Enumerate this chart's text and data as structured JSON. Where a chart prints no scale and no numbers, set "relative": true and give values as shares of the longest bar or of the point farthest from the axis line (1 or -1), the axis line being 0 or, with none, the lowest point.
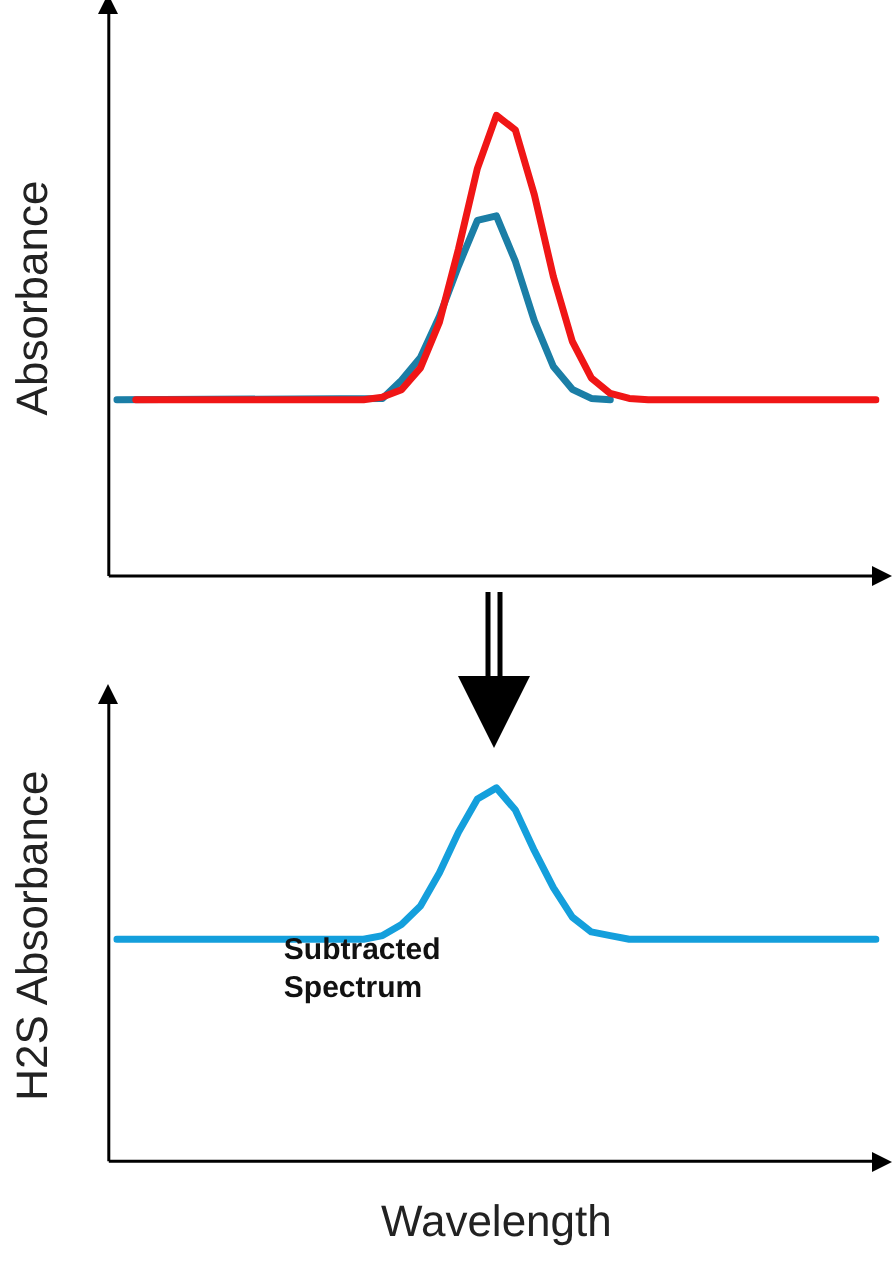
{
  "chart_data": [
    {
      "type": "line",
      "ylabel": "Absorbance",
      "relative": true,
      "tick_labels": false,
      "marker": "none",
      "categories": [
        null,
        null,
        null,
        null,
        null,
        null,
        null,
        null,
        null,
        null,
        null,
        null,
        null,
        null,
        null,
        null,
        null,
        null,
        null,
        null,
        null,
        null,
        null,
        null,
        null,
        null,
        null,
        null,
        null,
        null,
        null,
        null,
        null,
        null,
        null,
        null,
        null,
        null,
        null,
        null,
        null
      ],
      "series": [
        {
          "color": "#1b7ea6",
          "values": [
            0.377,
            null,
            null,
            null,
            null,
            null,
            null,
            null,
            null,
            null,
            null,
            null,
            null,
            null,
            0.38,
            0.42,
            0.47,
            0.56,
            0.67,
            0.77,
            0.78,
            0.68,
            0.55,
            0.45,
            0.4,
            0.38,
            0.377,
            null,
            null,
            null,
            null,
            null,
            null,
            null,
            null,
            null,
            null,
            null,
            null,
            null,
            null
          ]
        },
        {
          "color": "#f01616",
          "values": [
            null,
            0.377,
            0.377,
            0.377,
            0.377,
            0.377,
            0.377,
            0.377,
            0.377,
            0.377,
            0.377,
            0.377,
            0.377,
            0.377,
            0.383,
            0.399,
            0.447,
            0.547,
            0.707,
            0.884,
            1,
            0.968,
            0.826,
            0.647,
            0.505,
            0.425,
            0.391,
            0.38,
            0.377,
            0.377,
            0.377,
            0.377,
            0.377,
            0.377,
            0.377,
            0.377,
            0.377,
            0.377,
            0.377,
            0.377,
            0.377
          ]
        }
      ]
    },
    {
      "type": "line",
      "ylabel": "H2S Absorbance",
      "xlabel": "Wavelength",
      "relative": true,
      "tick_labels": false,
      "marker": "none",
      "annotations": [
        "Subtracted Spectrum"
      ],
      "categories": [
        null,
        null,
        null,
        null,
        null,
        null,
        null,
        null,
        null,
        null,
        null,
        null,
        null,
        null,
        null,
        null,
        null,
        null,
        null,
        null,
        null,
        null,
        null,
        null,
        null,
        null,
        null,
        null,
        null,
        null,
        null,
        null,
        null,
        null,
        null,
        null,
        null,
        null,
        null,
        null,
        null
      ],
      "series": [
        {
          "color": "#149fdc",
          "values": [
            0.59,
            0.59,
            0.59,
            0.59,
            0.59,
            0.59,
            0.59,
            0.59,
            0.59,
            0.59,
            0.59,
            0.59,
            0.59,
            0.59,
            0.6,
            0.63,
            0.68,
            0.77,
            0.88,
            0.97,
            1,
            0.94,
            0.83,
            0.73,
            0.65,
            0.61,
            0.6,
            0.59,
            0.59,
            0.59,
            0.59,
            0.59,
            0.59,
            0.59,
            0.59,
            0.59,
            0.59,
            0.59,
            0.59,
            0.59,
            0.59
          ]
        }
      ]
    }
  ]
}
